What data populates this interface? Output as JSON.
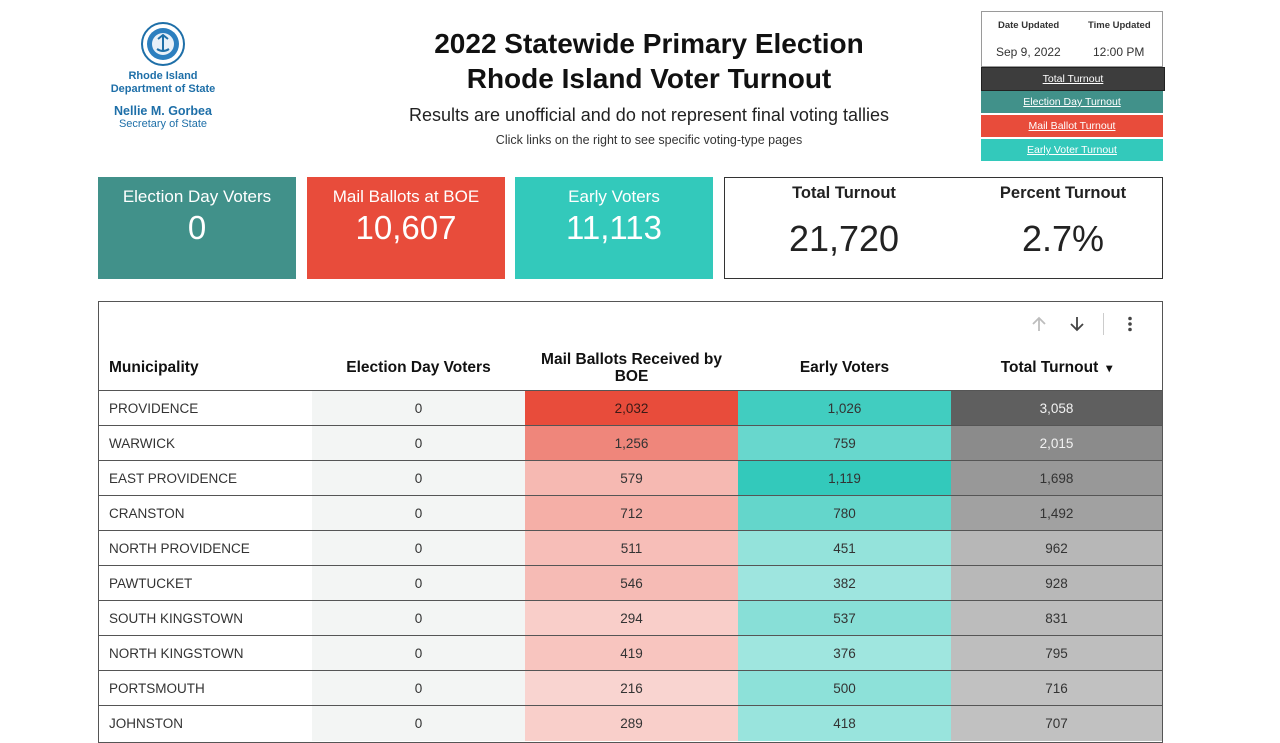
{
  "header": {
    "org_line1": "Rhode Island",
    "org_line2": "Department of State",
    "official_name": "Nellie M. Gorbea",
    "official_title": "Secretary of State",
    "title_line1": "2022 Statewide Primary Election",
    "title_line2": "Rhode Island Voter Turnout",
    "subtitle": "Results are unofficial and do not represent final voting tallies",
    "note": "Click links on the right to see specific voting-type pages"
  },
  "updated": {
    "date_label": "Date Updated",
    "time_label": "Time Updated",
    "date": "Sep 9, 2022",
    "time": "12:00 PM"
  },
  "nav": [
    {
      "label": "Total Turnout",
      "color": "#3d3d3d"
    },
    {
      "label": "Election Day Turnout",
      "color": "#41918a"
    },
    {
      "label": "Mail Ballot Turnout",
      "color": "#e84c3b"
    },
    {
      "label": "Early Voter Turnout",
      "color": "#33c9bb"
    }
  ],
  "kpis": {
    "election_day": {
      "label": "Election Day Voters",
      "value": "0",
      "color": "#41918a"
    },
    "mail": {
      "label": "Mail Ballots at BOE",
      "value": "10,607",
      "color": "#e84c3b"
    },
    "early": {
      "label": "Early Voters",
      "value": "11,113",
      "color": "#33c9bb"
    },
    "total": {
      "label": "Total Turnout",
      "value": "21,720"
    },
    "percent": {
      "label": "Percent Turnout",
      "value": "2.7%"
    }
  },
  "table": {
    "headers": {
      "municipality": "Municipality",
      "election_day": "Election Day Voters",
      "mail": "Mail Ballots Received by BOE",
      "early": "Early Voters",
      "total": "Total Turnout"
    },
    "sort_indicator": "▾",
    "rows": [
      {
        "municipality": "PROVIDENCE",
        "election_day": "0",
        "mail": "2,032",
        "early": "1,026",
        "total": "3,058"
      },
      {
        "municipality": "WARWICK",
        "election_day": "0",
        "mail": "1,256",
        "early": "759",
        "total": "2,015"
      },
      {
        "municipality": "EAST PROVIDENCE",
        "election_day": "0",
        "mail": "579",
        "early": "1,119",
        "total": "1,698"
      },
      {
        "municipality": "CRANSTON",
        "election_day": "0",
        "mail": "712",
        "early": "780",
        "total": "1,492"
      },
      {
        "municipality": "NORTH PROVIDENCE",
        "election_day": "0",
        "mail": "511",
        "early": "451",
        "total": "962"
      },
      {
        "municipality": "PAWTUCKET",
        "election_day": "0",
        "mail": "546",
        "early": "382",
        "total": "928"
      },
      {
        "municipality": "SOUTH KINGSTOWN",
        "election_day": "0",
        "mail": "294",
        "early": "537",
        "total": "831"
      },
      {
        "municipality": "NORTH KINGSTOWN",
        "election_day": "0",
        "mail": "419",
        "early": "376",
        "total": "795"
      },
      {
        "municipality": "PORTSMOUTH",
        "election_day": "0",
        "mail": "216",
        "early": "500",
        "total": "716"
      },
      {
        "municipality": "JOHNSTON",
        "election_day": "0",
        "mail": "289",
        "early": "418",
        "total": "707"
      }
    ]
  },
  "colors": {
    "mail_max": "#e84c3b",
    "early_max": "#33c9bb",
    "total_max": "#5f5f5f",
    "election_day_bg": "#f3f5f4"
  }
}
